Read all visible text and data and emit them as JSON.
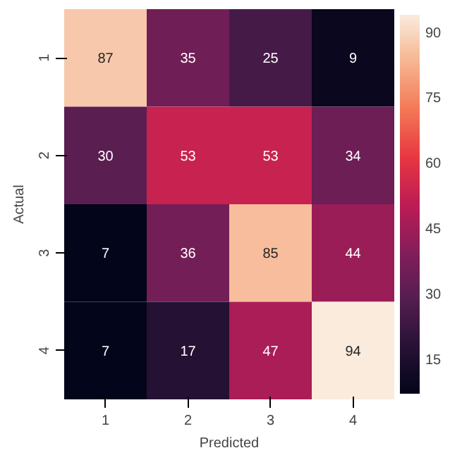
{
  "chart_data": {
    "type": "heatmap",
    "xlabel": "Predicted",
    "ylabel": "Actual",
    "categories": [
      "1",
      "2",
      "3",
      "4"
    ],
    "y_categories": [
      "1",
      "2",
      "3",
      "4"
    ],
    "cells": [
      [
        87,
        35,
        25,
        9
      ],
      [
        30,
        53,
        53,
        34
      ],
      [
        7,
        36,
        85,
        44
      ],
      [
        7,
        17,
        47,
        94
      ]
    ],
    "clim": [
      7,
      94
    ],
    "cticks": [
      15,
      30,
      45,
      60,
      75,
      90
    ],
    "data_labels": true
  }
}
